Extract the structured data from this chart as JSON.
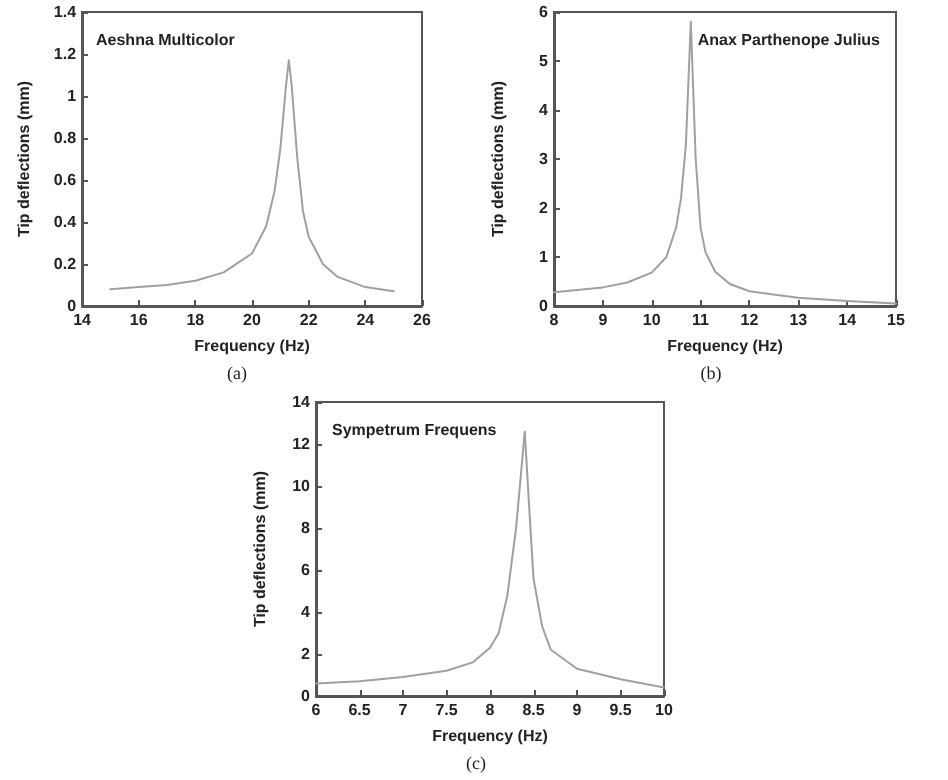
{
  "chart_data": [
    {
      "type": "line",
      "title": "Aeshna Multicolor",
      "xlabel": "Frequency (Hz)",
      "ylabel": "Tip deflections (mm)",
      "annotations": [
        "(a)"
      ],
      "marker": "none",
      "line_style": "solid",
      "grid": false,
      "x": [
        15,
        16,
        17,
        18,
        19,
        20,
        20.5,
        20.8,
        21,
        21.2,
        21.3,
        21.4,
        21.6,
        21.8,
        22,
        22.5,
        23,
        24,
        25
      ],
      "series": [
        {
          "color": "#a0a0a0",
          "values": [
            0.08,
            0.09,
            0.1,
            0.12,
            0.16,
            0.25,
            0.38,
            0.55,
            0.75,
            1.05,
            1.17,
            1.05,
            0.7,
            0.45,
            0.33,
            0.2,
            0.14,
            0.09,
            0.07
          ]
        }
      ],
      "xlim": [
        14,
        26
      ],
      "xticks": [
        14,
        16,
        18,
        20,
        22,
        24,
        26
      ],
      "ylim": [
        0,
        1.4
      ],
      "yticks": [
        0,
        0.2,
        0.4,
        0.6,
        0.8,
        1,
        1.2,
        1.4
      ]
    },
    {
      "type": "line",
      "title": "Anax Parthenope Julius",
      "xlabel": "Frequency (Hz)",
      "ylabel": "Tip deflections (mm)",
      "annotations": [
        "(b)"
      ],
      "marker": "none",
      "line_style": "solid",
      "grid": false,
      "x": [
        8,
        9,
        9.5,
        10,
        10.3,
        10.5,
        10.6,
        10.7,
        10.8,
        10.9,
        11,
        11.1,
        11.3,
        11.6,
        12,
        13,
        14,
        15
      ],
      "series": [
        {
          "color": "#a0a0a0",
          "values": [
            0.28,
            0.38,
            0.48,
            0.68,
            1.0,
            1.6,
            2.2,
            3.3,
            5.8,
            3.0,
            1.6,
            1.1,
            0.7,
            0.45,
            0.3,
            0.17,
            0.1,
            0.05
          ]
        }
      ],
      "xlim": [
        8,
        15
      ],
      "xticks": [
        8,
        9,
        10,
        11,
        12,
        13,
        14,
        15
      ],
      "ylim": [
        0,
        6
      ],
      "yticks": [
        0,
        1,
        2,
        3,
        4,
        5,
        6
      ]
    },
    {
      "type": "line",
      "title": "Sympetrum Frequens",
      "xlabel": "Frequency (Hz)",
      "ylabel": "Tip deflections (mm)",
      "annotations": [
        "(c)"
      ],
      "marker": "none",
      "line_style": "solid",
      "grid": false,
      "x": [
        6,
        6.5,
        7,
        7.5,
        7.8,
        8,
        8.1,
        8.2,
        8.3,
        8.4,
        8.45,
        8.5,
        8.6,
        8.7,
        9,
        9.5,
        10
      ],
      "series": [
        {
          "color": "#a0a0a0",
          "values": [
            0.6,
            0.7,
            0.9,
            1.2,
            1.6,
            2.3,
            3.0,
            4.8,
            8,
            12.6,
            9,
            5.6,
            3.3,
            2.2,
            1.3,
            0.8,
            0.4
          ]
        }
      ],
      "xlim": [
        6,
        10
      ],
      "xticks": [
        6,
        6.5,
        7,
        7.5,
        8,
        8.5,
        9,
        9.5,
        10
      ],
      "ylim": [
        0,
        14
      ],
      "yticks": [
        0,
        2,
        4,
        6,
        8,
        10,
        12,
        14
      ]
    }
  ]
}
